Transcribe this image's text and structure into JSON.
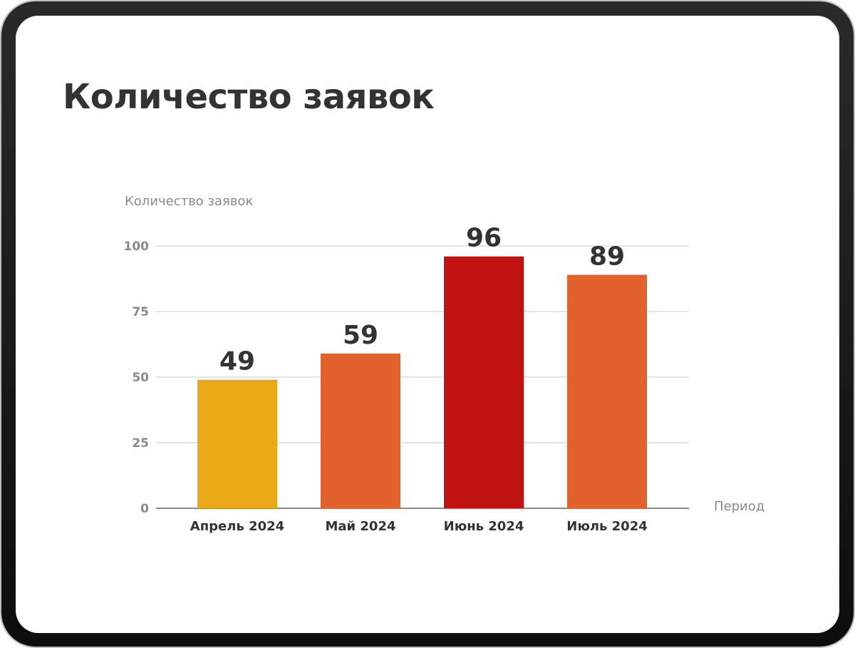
{
  "page": {
    "title": "Количество заявок"
  },
  "chart_data": {
    "type": "bar",
    "title": "",
    "xlabel": "Период",
    "ylabel": "Количество заявок",
    "categories": [
      "Апрель 2024",
      "Май 2024",
      "Июнь 2024",
      "Июль 2024"
    ],
    "values": [
      49,
      59,
      96,
      89
    ],
    "colors": [
      "#EBA917",
      "#E2612C",
      "#C11212",
      "#E2612C"
    ],
    "ylim": [
      0,
      100
    ],
    "yticks": [
      0,
      25,
      50,
      75,
      100
    ],
    "grid": true,
    "legend": "none"
  }
}
